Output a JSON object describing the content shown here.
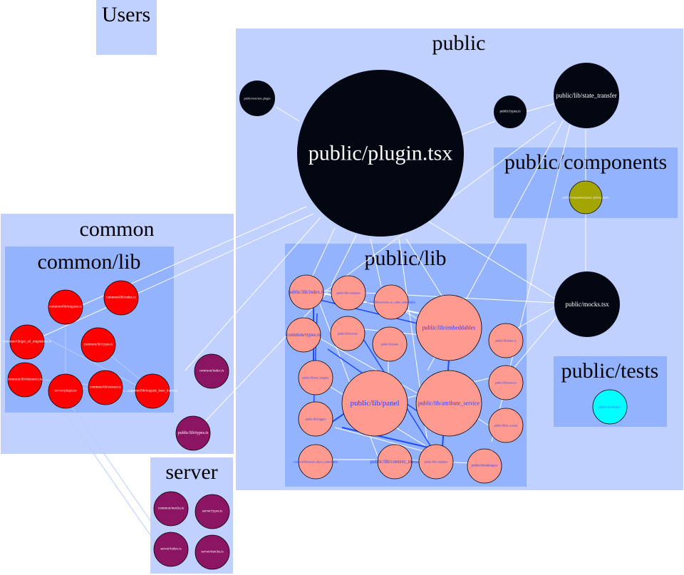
{
  "colors": {
    "cluster_outer": "#c0d0ff",
    "cluster_inner": "#93b3ff",
    "node_black": "#020712",
    "node_red": "#ff0000",
    "node_salmon": "#ff9a90",
    "node_purple": "#8b1463",
    "node_olive": "#a3a600",
    "node_cyan": "#00ffff",
    "edge_light": "#b9cbff",
    "edge_blue": "#1f4cff",
    "edge_white": "#ffffff"
  },
  "clusters": {
    "users": "Users",
    "public": "public",
    "public_components": "public/components",
    "common": "common",
    "common_lib": "common/lib",
    "public_lib": "public/lib",
    "public_tests": "public/tests",
    "server": "server"
  },
  "nodes": {
    "public_plugin": "public/plugin.tsx",
    "public_test_plugin": "public/tests/test_plugin",
    "public_types": "public/types.ts",
    "public_state_transfer": "public/lib/state_transfer",
    "public_panel_options_menu": "public/components/panel_options_menu",
    "public_mocks": "public/mocks.tsx",
    "public_tests_helpers": "public/tests/helpers",
    "common_migrate": "common/lib/migrate.ts",
    "common_lib_index": "common/lib/index.ts",
    "common_get_all_migrations": "common/lib/get_all_migrations.ts",
    "common_types": "common/lib/types.ts",
    "common_telemetry": "common/lib/telemetry.ts",
    "server_plugin": "server/plugin.ts",
    "common_extract": "common/lib/extract.ts",
    "common_migrate_base_input": "common/lib/migrate_base_input.ts",
    "common_index": "common/index.ts",
    "public_lib_types": "public/lib/types.ts",
    "pl_index": "public/lib/index.ts",
    "pl_containers": "public/lib/containers",
    "pl_reference": "public/lib/reference_or_value_embeddable",
    "pl_embeddables": "public/lib/embeddables",
    "pl_common_types": "common/types.ts",
    "pl_actions": "public/lib/actions",
    "pl_state": "public/lib/state",
    "pl_lib_index": "public/lib/index.ts",
    "pl_test_samples": "public/lib/test_samples",
    "pl_panel": "public/lib/panel",
    "pl_attribute_service": "public/lib/attribute_service",
    "pl_errors": "public/lib/errors.ts",
    "pl_triggers": "public/lib/triggers",
    "pl_ui_actions": "public/lib/ui_actions",
    "pl_saved_object": "common/lib/saved_object_embeddable",
    "pl_context_menu": "public/lib/context_menu",
    "pl_containers2": "public/lib/containers",
    "pl_bootstrap": "public/bootstrap.ts",
    "server_common_mocks": "common/mocks.ts",
    "server_types": "server/types.ts",
    "server_index": "server/index.ts",
    "server_mocks": "server/mocks.ts"
  }
}
